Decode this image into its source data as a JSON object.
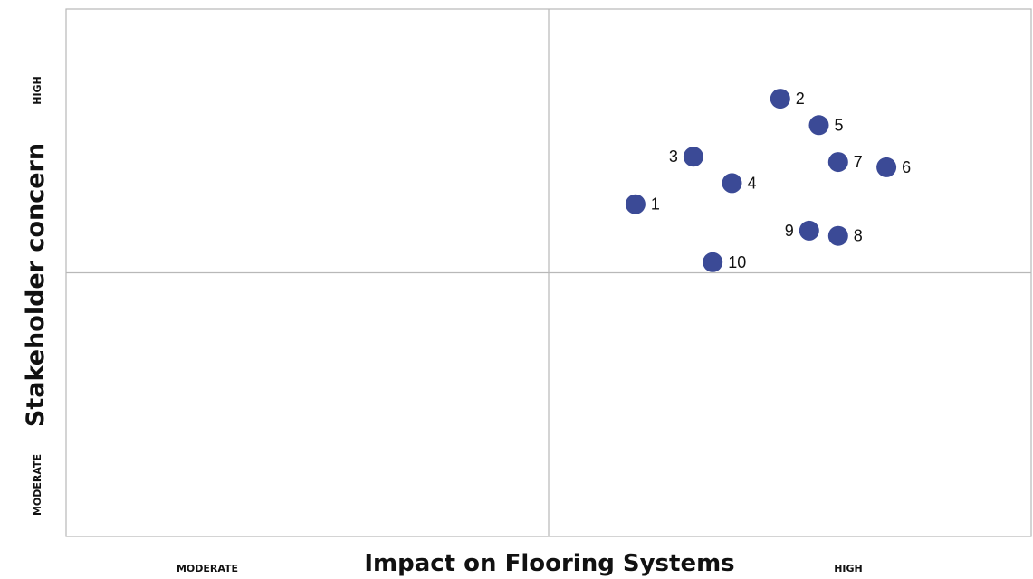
{
  "chart_data": {
    "type": "scatter",
    "title": "",
    "xlabel": "Impact on Flooring Systems",
    "ylabel": "Stakeholder concern",
    "x_ticks": [
      "MODERATE",
      "HIGH"
    ],
    "y_ticks": [
      "MODERATE",
      "HIGH"
    ],
    "xlim": [
      0,
      10
    ],
    "ylim": [
      0,
      10
    ],
    "quadrant_split": {
      "x": 5,
      "y": 5
    },
    "grid": false,
    "point_color": "#3b4a96",
    "points": [
      {
        "label": "1",
        "x": 5.9,
        "y": 6.3
      },
      {
        "label": "2",
        "x": 7.4,
        "y": 8.3
      },
      {
        "label": "3",
        "x": 6.5,
        "y": 7.2
      },
      {
        "label": "4",
        "x": 6.9,
        "y": 6.7
      },
      {
        "label": "5",
        "x": 7.8,
        "y": 7.8
      },
      {
        "label": "6",
        "x": 8.5,
        "y": 7.0
      },
      {
        "label": "7",
        "x": 8.0,
        "y": 7.1
      },
      {
        "label": "8",
        "x": 8.0,
        "y": 5.7
      },
      {
        "label": "9",
        "x": 7.7,
        "y": 5.8
      },
      {
        "label": "10",
        "x": 6.7,
        "y": 5.2
      }
    ]
  }
}
